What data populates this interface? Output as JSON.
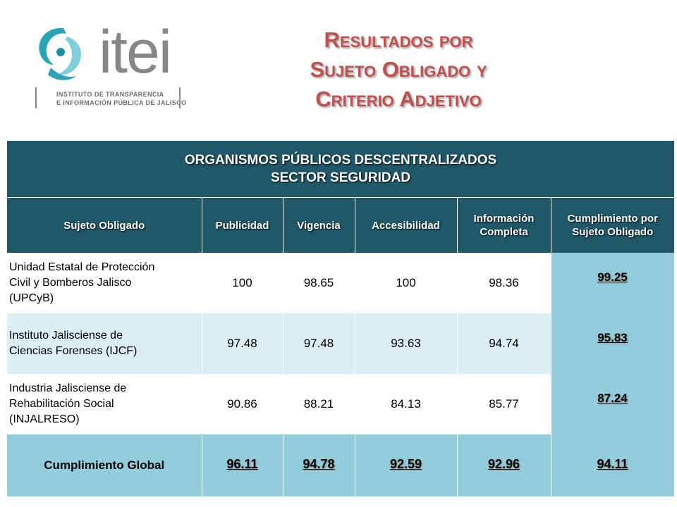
{
  "logo": {
    "wordmark": "itei",
    "subtitle_line1": "INSTITUTO DE TRANSPARENCIA",
    "subtitle_line2": "E INFORMACIÓN PÚBLICA DE JALISCO",
    "colors": {
      "teal": "#2aa3b7",
      "gray": "#878787"
    }
  },
  "title": {
    "line1": "Resultados por",
    "line2": "Sujeto Obligado y",
    "line3": "Criterio Adjetivo",
    "color": "#c0504d"
  },
  "table": {
    "banner_line1": "ORGANISMOS PÚBLICOS DESCENTRALIZADOS",
    "banner_line2": "SECTOR SEGURIDAD",
    "headers": {
      "sujeto": "Sujeto Obligado",
      "publicidad": "Publicidad",
      "vigencia": "Vigencia",
      "accesibilidad": "Accesibilidad",
      "informacion_line1": "Información",
      "informacion_line2": "Completa",
      "cumplimiento_line1": "Cumplimiento por",
      "cumplimiento_line2": "Sujeto Obligado"
    },
    "rows": [
      {
        "name_line1": "Unidad  Estatal de Protección",
        "name_line2": "Civil y Bomberos Jalisco",
        "name_line3": "(UPCyB)",
        "publicidad": "100",
        "vigencia": "98.65",
        "accesibilidad": "100",
        "informacion": "98.36",
        "cumplimiento": "99.25"
      },
      {
        "name_line1": "Instituto Jalisciense de",
        "name_line2": "Ciencias Forenses (IJCF)",
        "name_line3": "",
        "publicidad": "97.48",
        "vigencia": "97.48",
        "accesibilidad": "93.63",
        "informacion": "94.74",
        "cumplimiento": "95.83"
      },
      {
        "name_line1": "Industria Jalisciense de",
        "name_line2": "Rehabilitación  Social",
        "name_line3": "(INJALRESO)",
        "publicidad": "90.86",
        "vigencia": "88.21",
        "accesibilidad": "84.13",
        "informacion": "85.77",
        "cumplimiento": "87.24"
      }
    ],
    "global": {
      "label": "Cumplimiento Global",
      "publicidad": "96.11",
      "vigencia": "94.78",
      "accesibilidad": "92.59",
      "informacion": "92.96",
      "cumplimiento": "94.11"
    },
    "colors": {
      "header_bg": "#215868",
      "row_light": "#daeef3",
      "result_bg": "#92cddc"
    }
  }
}
